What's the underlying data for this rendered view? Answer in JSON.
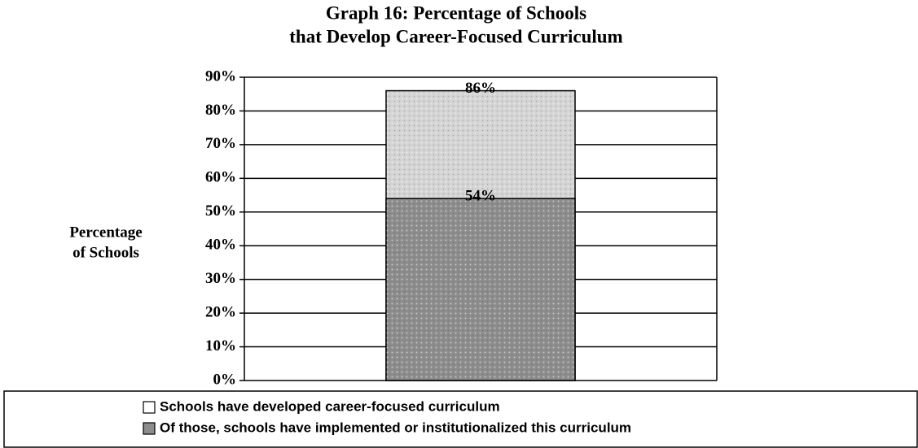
{
  "chart_data": {
    "type": "bar",
    "bar_layout": "overlap",
    "title": [
      "Graph 16: Percentage of Schools",
      "that Develop Career-Focused Curriculum"
    ],
    "y_label": [
      "Percentage",
      "of Schools"
    ],
    "categories": [
      null
    ],
    "series": [
      {
        "name": "Schools have developed career-focused curriculum",
        "color": "#d4d4d4",
        "values": [
          86
        ],
        "value_labels": [
          "86%"
        ]
      },
      {
        "name": "Of those, schools have implemented or institutionalized this curriculum",
        "color": "#8c8c8c",
        "values": [
          54
        ],
        "value_labels": [
          "54%"
        ]
      }
    ],
    "ylim": [
      0,
      90
    ],
    "yticks": [
      {
        "value": 0,
        "label": "0%"
      },
      {
        "value": 10,
        "label": "10%"
      },
      {
        "value": 20,
        "label": "20%"
      },
      {
        "value": 30,
        "label": "30%"
      },
      {
        "value": 40,
        "label": "40%"
      },
      {
        "value": 50,
        "label": "50%"
      },
      {
        "value": 60,
        "label": "60%"
      },
      {
        "value": 70,
        "label": "70%"
      },
      {
        "value": 80,
        "label": "80%"
      },
      {
        "value": 90,
        "label": "90%"
      }
    ],
    "grid": true,
    "legend": "bottom"
  }
}
